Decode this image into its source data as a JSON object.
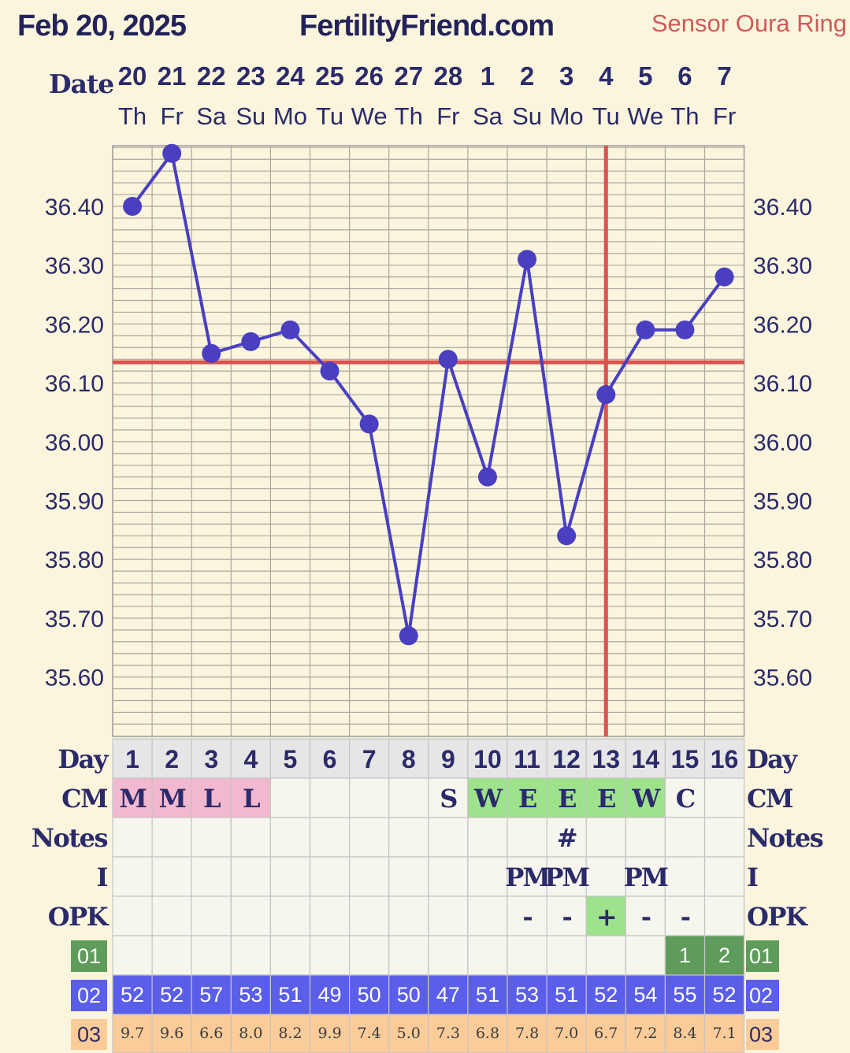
{
  "header": {
    "date": "Feb 20, 2025",
    "site": "FertilityFriend.com",
    "sensor": "Sensor Oura Ring"
  },
  "labels": {
    "date": "Date",
    "day": "Day",
    "cm": "CM",
    "notes": "Notes",
    "i": "I",
    "opk": "OPK",
    "r01": "01",
    "r02": "02",
    "r03": "03"
  },
  "colors": {
    "background": "#faf5dc",
    "line": "#4a3fc0",
    "coverline": "#d9534f",
    "cm_pink": "#f2b8cf",
    "cm_green": "#9ee28c",
    "r01": "#5f9c5b",
    "r02": "#5a5ee8",
    "r03": "#fbcc99"
  },
  "chart_data": {
    "type": "line",
    "dates": [
      "20",
      "21",
      "22",
      "23",
      "24",
      "25",
      "26",
      "27",
      "28",
      "1",
      "2",
      "3",
      "4",
      "5",
      "6",
      "7"
    ],
    "weekdays": [
      "Th",
      "Fr",
      "Sa",
      "Su",
      "Mo",
      "Tu",
      "We",
      "Th",
      "Fr",
      "Sa",
      "Su",
      "Mo",
      "Tu",
      "We",
      "Th",
      "Fr"
    ],
    "cycle_days": [
      "1",
      "2",
      "3",
      "4",
      "5",
      "6",
      "7",
      "8",
      "9",
      "10",
      "11",
      "12",
      "13",
      "14",
      "15",
      "16"
    ],
    "temperatures": [
      36.4,
      36.49,
      36.15,
      36.17,
      36.19,
      36.12,
      36.03,
      35.67,
      36.14,
      35.94,
      36.31,
      35.84,
      36.08,
      36.19,
      36.19,
      36.28
    ],
    "ytick_labels": [
      "35.60",
      "35.70",
      "35.80",
      "35.90",
      "36.00",
      "36.10",
      "36.20",
      "36.30",
      "36.40"
    ],
    "ylim": [
      35.5,
      36.5
    ],
    "coverline": 36.135,
    "ovulation_day": 13,
    "grid": true
  },
  "rows": {
    "cm": [
      "M",
      "M",
      "L",
      "L",
      "",
      "",
      "",
      "",
      "S",
      "W",
      "E",
      "E",
      "E",
      "W",
      "C",
      ""
    ],
    "cm_colors": [
      "pink",
      "pink",
      "pink",
      "pink",
      "",
      "",
      "",
      "",
      "",
      "green",
      "green",
      "green",
      "green",
      "green",
      "",
      ""
    ],
    "notes": [
      "",
      "",
      "",
      "",
      "",
      "",
      "",
      "",
      "",
      "",
      "",
      "#",
      "",
      "",
      "",
      ""
    ],
    "i": [
      "",
      "",
      "",
      "",
      "",
      "",
      "",
      "",
      "",
      "",
      "PM",
      "PM",
      "",
      "PM",
      "",
      ""
    ],
    "opk": [
      "",
      "",
      "",
      "",
      "",
      "",
      "",
      "",
      "",
      "",
      "-",
      "-",
      "+",
      "-",
      "-",
      ""
    ],
    "opk_highlight": 13,
    "r01": [
      "",
      "",
      "",
      "",
      "",
      "",
      "",
      "",
      "",
      "",
      "",
      "",
      "",
      "",
      "1",
      "2"
    ],
    "r02": [
      "52",
      "52",
      "57",
      "53",
      "51",
      "49",
      "50",
      "50",
      "47",
      "51",
      "53",
      "51",
      "52",
      "54",
      "55",
      "52"
    ],
    "r03": [
      "9.7",
      "9.6",
      "6.6",
      "8.0",
      "8.2",
      "9.9",
      "7.4",
      "5.0",
      "7.3",
      "6.8",
      "7.8",
      "7.0",
      "6.7",
      "7.2",
      "8.4",
      "7.1"
    ]
  }
}
